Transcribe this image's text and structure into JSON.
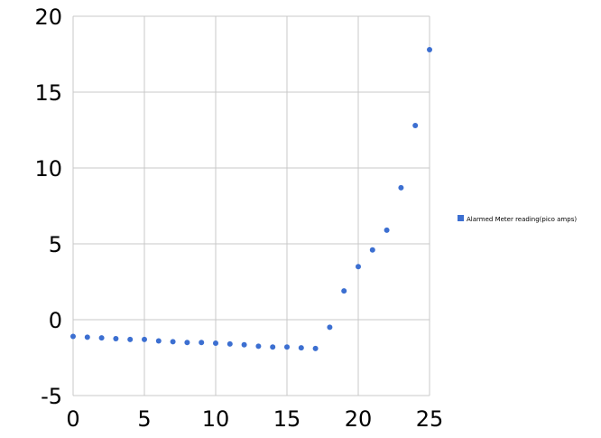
{
  "chart_data": {
    "type": "scatter",
    "title": "",
    "xlabel": "",
    "ylabel": "",
    "xlim": [
      0,
      25
    ],
    "ylim": [
      -5,
      20
    ],
    "x_ticks": [
      "0",
      "5",
      "10",
      "15",
      "20",
      "25"
    ],
    "y_ticks": [
      "20",
      "15",
      "10",
      "5",
      "0",
      "-5"
    ],
    "grid": true,
    "legend_position": "right",
    "series": [
      {
        "name": "Alarmed Meter reading(pico amps)",
        "color": "#3c6fd1",
        "x": [
          0,
          1,
          2,
          3,
          4,
          5,
          6,
          7,
          8,
          9,
          10,
          11,
          12,
          13,
          14,
          15,
          16,
          17,
          18,
          19,
          20,
          21,
          22,
          23,
          24,
          25
        ],
        "y": [
          -1.1,
          -1.15,
          -1.2,
          -1.25,
          -1.3,
          -1.3,
          -1.4,
          -1.45,
          -1.5,
          -1.5,
          -1.55,
          -1.6,
          -1.65,
          -1.75,
          -1.8,
          -1.8,
          -1.85,
          -1.9,
          -0.5,
          1.9,
          3.5,
          4.6,
          5.9,
          8.7,
          12.8,
          17.8
        ]
      }
    ]
  }
}
